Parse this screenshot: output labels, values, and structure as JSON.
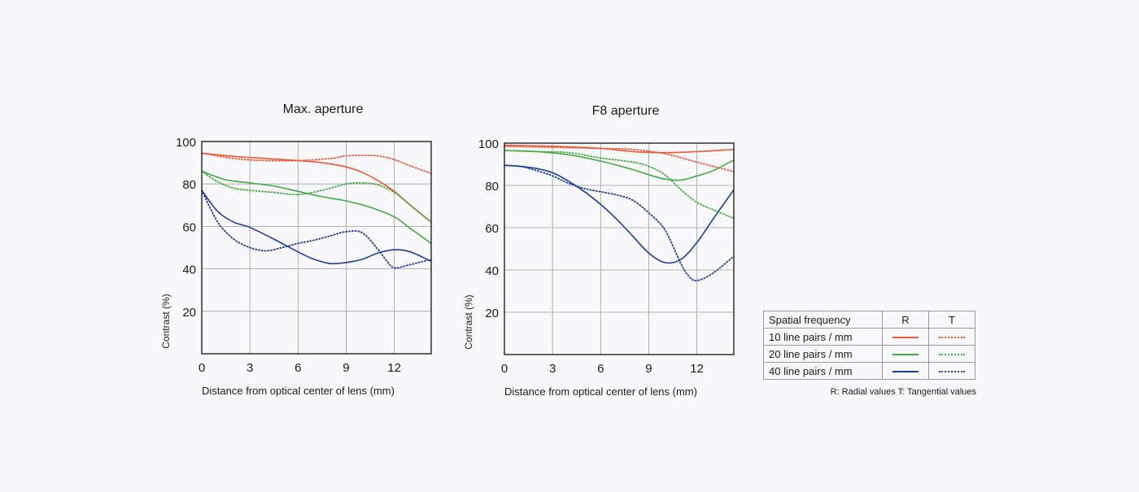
{
  "colors": {
    "lp10": "#e8593a",
    "lp20": "#45a844",
    "lp40": "#1c3f8f",
    "grid": "#9e9e9e",
    "frame": "#222222"
  },
  "legend": {
    "header": "Spatial frequency",
    "col_r": "R",
    "col_t": "T",
    "rows": [
      {
        "label": "10 line pairs / mm",
        "color_key": "lp10"
      },
      {
        "label": "20 line pairs / mm",
        "color_key": "lp20"
      },
      {
        "label": "40 line pairs / mm",
        "color_key": "lp40"
      }
    ],
    "note": "R: Radial values  T: Tangential values"
  },
  "chart_data": [
    {
      "type": "line",
      "title": "Max. aperture",
      "xlabel": "Distance from optical center of lens (mm)",
      "ylabel": "Contrast (%)",
      "xlim": [
        0,
        14.3
      ],
      "ylim": [
        0,
        100
      ],
      "xticks": [
        0,
        3,
        6,
        9,
        12
      ],
      "yticks": [
        20,
        40,
        60,
        80,
        100
      ],
      "grid": true,
      "series": [
        {
          "name": "10 line pairs / mm R",
          "freq": "lp10",
          "style": "solid",
          "x": [
            0,
            2,
            4,
            6,
            7.5,
            9,
            10,
            11,
            12,
            13,
            14.3
          ],
          "y": [
            94.5,
            93,
            92,
            91,
            90,
            88,
            85.5,
            81.5,
            76.5,
            70,
            62
          ]
        },
        {
          "name": "10 line pairs / mm T",
          "freq": "lp10",
          "style": "dotted",
          "x": [
            0,
            2,
            4,
            6,
            8,
            9,
            10,
            11,
            12,
            13,
            14.3
          ],
          "y": [
            94.5,
            92,
            91,
            91,
            92,
            93.2,
            93.5,
            93.2,
            91.5,
            88.5,
            85
          ]
        },
        {
          "name": "20 line pairs / mm R",
          "freq": "lp20",
          "style": "solid",
          "x": [
            0,
            1.5,
            3,
            4.5,
            6,
            7.5,
            9,
            10.5,
            12,
            13,
            14.3
          ],
          "y": [
            86,
            82,
            80.5,
            79,
            76.5,
            74,
            72,
            69,
            64.5,
            59,
            52
          ]
        },
        {
          "name": "20 line pairs / mm T",
          "freq": "lp20",
          "style": "dotted",
          "x": [
            0,
            1,
            2,
            3,
            4.5,
            6,
            7.5,
            9,
            10,
            11,
            12,
            13,
            14.3
          ],
          "y": [
            86,
            81,
            78,
            77,
            76,
            75,
            77,
            80,
            80.5,
            79.5,
            76,
            70,
            62
          ]
        },
        {
          "name": "40 line pairs / mm R",
          "freq": "lp40",
          "style": "solid",
          "x": [
            0,
            1,
            2,
            3,
            4.5,
            6,
            7,
            8,
            9,
            10,
            11,
            12,
            13,
            14.3
          ],
          "y": [
            77,
            67,
            62,
            59.5,
            54,
            48,
            44.5,
            42.5,
            43,
            44.5,
            47.5,
            49,
            48,
            43.5
          ]
        },
        {
          "name": "40 line pairs / mm T",
          "freq": "lp40",
          "style": "dotted",
          "x": [
            0,
            1,
            2,
            3,
            4,
            5,
            6,
            7,
            8,
            9,
            10,
            11,
            11.5,
            12,
            13,
            14.3
          ],
          "y": [
            77,
            62,
            54,
            50,
            48.5,
            50,
            52,
            53.5,
            55.5,
            57.5,
            57,
            49,
            44,
            40.5,
            42,
            44.5
          ]
        }
      ]
    },
    {
      "type": "line",
      "title": "F8 aperture",
      "xlabel": "Distance from optical center of lens (mm)",
      "ylabel": "Contrast (%)",
      "xlim": [
        0,
        14.3
      ],
      "ylim": [
        0,
        100
      ],
      "xticks": [
        0,
        3,
        6,
        9,
        12
      ],
      "yticks": [
        20,
        40,
        60,
        80,
        100
      ],
      "grid": true,
      "series": [
        {
          "name": "10 line pairs / mm R",
          "freq": "lp10",
          "style": "solid",
          "x": [
            0,
            3,
            6,
            8,
            10,
            12,
            14.3
          ],
          "y": [
            99,
            98.5,
            97.5,
            96,
            95.5,
            96,
            97
          ]
        },
        {
          "name": "10 line pairs / mm T",
          "freq": "lp10",
          "style": "dotted",
          "x": [
            0,
            3,
            6,
            8,
            10,
            12,
            14.3
          ],
          "y": [
            98.5,
            98,
            97.5,
            97,
            95,
            91,
            86.5
          ]
        },
        {
          "name": "20 line pairs / mm R",
          "freq": "lp20",
          "style": "solid",
          "x": [
            0,
            2,
            4,
            6,
            8,
            9,
            10,
            11,
            12,
            13,
            14.3
          ],
          "y": [
            96.5,
            96,
            94.5,
            91.5,
            87.5,
            85,
            83,
            82.5,
            84.5,
            87,
            92
          ]
        },
        {
          "name": "20 line pairs / mm T",
          "freq": "lp20",
          "style": "dotted",
          "x": [
            0,
            2,
            4,
            6,
            8,
            9,
            10,
            11,
            12,
            13,
            14.3
          ],
          "y": [
            96.5,
            96,
            95.5,
            93,
            91,
            89,
            85,
            78,
            72,
            68.5,
            64.5
          ]
        },
        {
          "name": "40 line pairs / mm R",
          "freq": "lp40",
          "style": "solid",
          "x": [
            0,
            1,
            2,
            3,
            4,
            5,
            6,
            7,
            8,
            9,
            10,
            11,
            12,
            13,
            14.3
          ],
          "y": [
            89.5,
            89,
            88,
            86,
            82,
            77,
            71,
            64,
            56,
            48,
            43.5,
            45,
            53,
            64,
            78
          ]
        },
        {
          "name": "40 line pairs / mm T",
          "freq": "lp40",
          "style": "dotted",
          "x": [
            0,
            1,
            2,
            3,
            4,
            5,
            6,
            7,
            8,
            9,
            10,
            11,
            11.5,
            12,
            13,
            14.3
          ],
          "y": [
            89.5,
            89,
            87,
            84.5,
            81,
            78.5,
            77,
            75.5,
            73,
            67,
            59,
            43,
            37,
            35,
            38.5,
            46.5
          ]
        }
      ]
    }
  ]
}
